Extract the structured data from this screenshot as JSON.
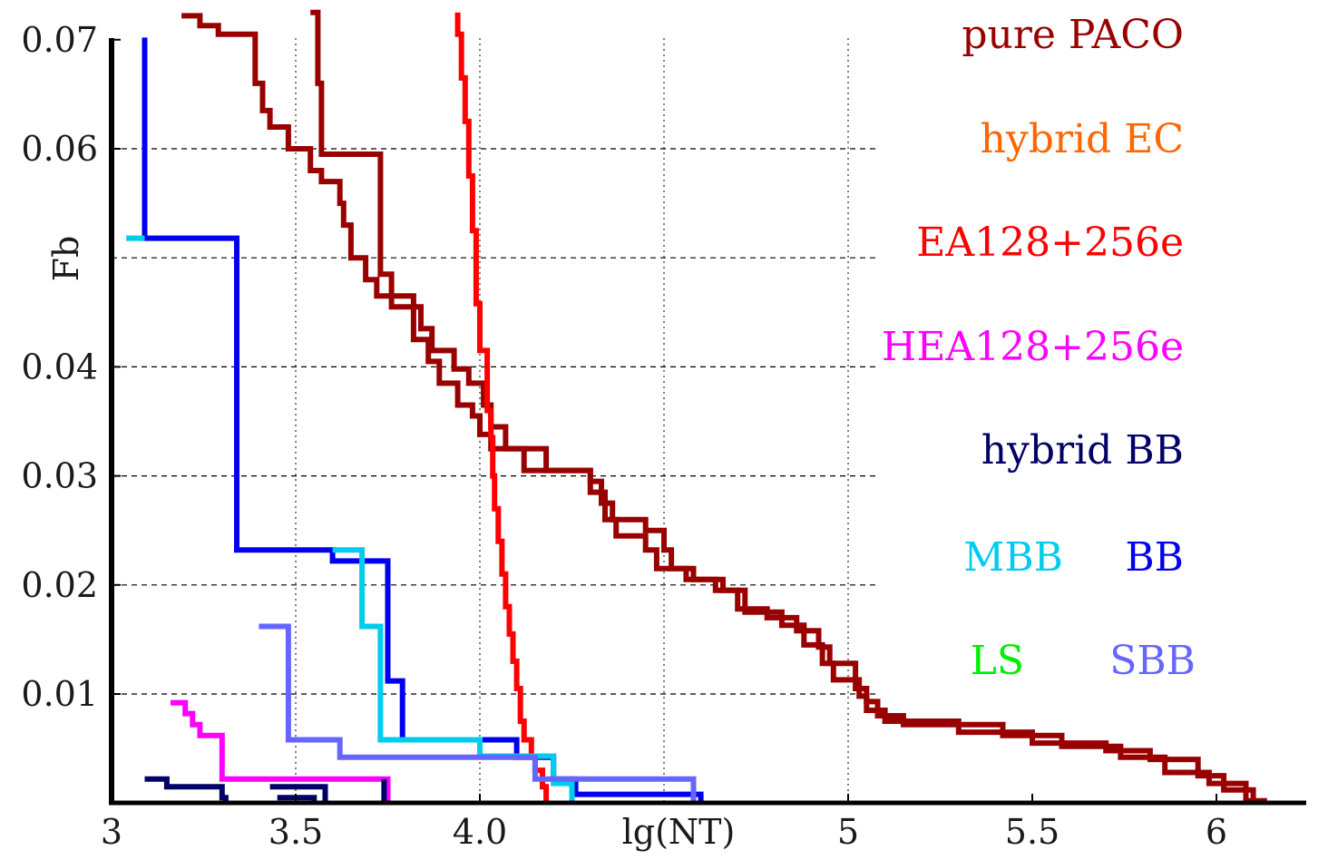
{
  "chart_data": {
    "type": "line",
    "xlabel": "lg(NT)",
    "ylabel": "Fb",
    "xlim": [
      3.0,
      6.25
    ],
    "ylim": [
      0.0,
      0.0702
    ],
    "x_ticks": [
      {
        "value": 3.0,
        "label": "3"
      },
      {
        "value": 3.5,
        "label": "3.5"
      },
      {
        "value": 4.0,
        "label": "4.0"
      },
      {
        "value": 5.0,
        "label": "5"
      },
      {
        "value": 5.5,
        "label": "5.5"
      },
      {
        "value": 6.0,
        "label": "6"
      }
    ],
    "y_ticks": [
      {
        "value": 0.01,
        "label": "0.01"
      },
      {
        "value": 0.02,
        "label": "0.02"
      },
      {
        "value": 0.03,
        "label": "0.03"
      },
      {
        "value": 0.04,
        "label": "0.04"
      },
      {
        "value": 0.06,
        "label": "0.06"
      },
      {
        "value": 0.07,
        "label": "0.07"
      }
    ],
    "grid": {
      "horizontal": [
        0.01,
        0.02,
        0.03,
        0.04,
        0.05,
        0.06
      ],
      "vertical": [
        3.5,
        4.0,
        4.5,
        5.0
      ]
    },
    "legend": [
      {
        "label": "pure PACO",
        "color": "#990000"
      },
      {
        "label": "hybrid EC",
        "color": "#ff6600"
      },
      {
        "label": "EA128+256e",
        "color": "#ff0000"
      },
      {
        "label": "HEA128+256e",
        "color": "#ff00ff"
      },
      {
        "label": "hybrid BB",
        "color": "#000066"
      },
      {
        "label": "MBB",
        "color": "#00ccee"
      },
      {
        "label": "BB",
        "color": "#0000ee"
      },
      {
        "label": "LS",
        "color": "#00ee00"
      },
      {
        "label": "SBB",
        "color": "#6666ff"
      }
    ],
    "series": [
      {
        "color": "#990000",
        "points": [
          [
            3.19,
            0.0722
          ],
          [
            3.24,
            0.0722
          ],
          [
            3.24,
            0.0713
          ],
          [
            3.29,
            0.0713
          ],
          [
            3.29,
            0.0705
          ],
          [
            3.39,
            0.0705
          ],
          [
            3.39,
            0.066
          ],
          [
            3.41,
            0.066
          ],
          [
            3.41,
            0.0635
          ],
          [
            3.43,
            0.0635
          ],
          [
            3.43,
            0.062
          ],
          [
            3.48,
            0.062
          ],
          [
            3.48,
            0.06
          ],
          [
            3.54,
            0.06
          ],
          [
            3.54,
            0.058
          ],
          [
            3.57,
            0.058
          ],
          [
            3.57,
            0.057
          ],
          [
            3.62,
            0.057
          ],
          [
            3.62,
            0.055
          ],
          [
            3.63,
            0.055
          ],
          [
            3.63,
            0.053
          ],
          [
            3.65,
            0.053
          ],
          [
            3.65,
            0.05
          ],
          [
            3.69,
            0.05
          ],
          [
            3.69,
            0.048
          ],
          [
            3.72,
            0.048
          ],
          [
            3.72,
            0.0465
          ],
          [
            3.76,
            0.0465
          ],
          [
            3.76,
            0.0455
          ],
          [
            3.84,
            0.0455
          ],
          [
            3.84,
            0.0435
          ],
          [
            3.87,
            0.0435
          ],
          [
            3.87,
            0.0415
          ],
          [
            3.93,
            0.0415
          ],
          [
            3.93,
            0.0398
          ],
          [
            3.97,
            0.0398
          ],
          [
            3.97,
            0.0385
          ],
          [
            4.01,
            0.0385
          ],
          [
            4.01,
            0.0365
          ],
          [
            4.03,
            0.0365
          ],
          [
            4.03,
            0.0345
          ],
          [
            4.07,
            0.0345
          ],
          [
            4.07,
            0.0325
          ],
          [
            4.12,
            0.0325
          ],
          [
            4.12,
            0.0305
          ],
          [
            4.3,
            0.0305
          ],
          [
            4.3,
            0.0295
          ],
          [
            4.33,
            0.0295
          ],
          [
            4.33,
            0.0275
          ],
          [
            4.36,
            0.0275
          ],
          [
            4.36,
            0.026
          ],
          [
            4.45,
            0.026
          ],
          [
            4.45,
            0.025
          ],
          [
            4.5,
            0.025
          ],
          [
            4.5,
            0.0232
          ],
          [
            4.52,
            0.0232
          ],
          [
            4.52,
            0.0215
          ],
          [
            4.58,
            0.0215
          ],
          [
            4.58,
            0.0205
          ],
          [
            4.66,
            0.0205
          ],
          [
            4.66,
            0.0195
          ],
          [
            4.7,
            0.0195
          ],
          [
            4.7,
            0.0178
          ],
          [
            4.78,
            0.0178
          ],
          [
            4.78,
            0.017
          ],
          [
            4.86,
            0.017
          ],
          [
            4.86,
            0.0158
          ],
          [
            4.92,
            0.0158
          ],
          [
            4.92,
            0.0143
          ],
          [
            4.95,
            0.0143
          ],
          [
            4.95,
            0.0128
          ],
          [
            5.02,
            0.0128
          ],
          [
            5.02,
            0.0105
          ],
          [
            5.05,
            0.0105
          ],
          [
            5.05,
            0.0093
          ],
          [
            5.08,
            0.0093
          ],
          [
            5.08,
            0.008
          ],
          [
            5.15,
            0.008
          ],
          [
            5.15,
            0.0072
          ],
          [
            5.42,
            0.0072
          ],
          [
            5.42,
            0.0062
          ],
          [
            5.58,
            0.0062
          ],
          [
            5.58,
            0.0052
          ],
          [
            5.74,
            0.0052
          ],
          [
            5.74,
            0.0042
          ],
          [
            5.86,
            0.0042
          ],
          [
            5.86,
            0.0028
          ],
          [
            5.98,
            0.0028
          ],
          [
            5.98,
            0.0018
          ],
          [
            6.08,
            0.0018
          ],
          [
            6.08,
            0.0002
          ],
          [
            6.13,
            0.0002
          ],
          [
            6.13,
            -0.0005
          ]
        ]
      },
      {
        "color": "#990000",
        "points": [
          [
            3.54,
            0.0725
          ],
          [
            3.56,
            0.0725
          ],
          [
            3.56,
            0.066
          ],
          [
            3.57,
            0.066
          ],
          [
            3.57,
            0.0595
          ],
          [
            3.73,
            0.0595
          ],
          [
            3.73,
            0.0485
          ],
          [
            3.76,
            0.0485
          ],
          [
            3.76,
            0.0465
          ],
          [
            3.82,
            0.0465
          ],
          [
            3.82,
            0.0425
          ],
          [
            3.86,
            0.0425
          ],
          [
            3.86,
            0.0405
          ],
          [
            3.89,
            0.0405
          ],
          [
            3.89,
            0.0385
          ],
          [
            3.94,
            0.0385
          ],
          [
            3.94,
            0.0365
          ],
          [
            3.98,
            0.0365
          ],
          [
            3.98,
            0.0355
          ],
          [
            4.0,
            0.0355
          ],
          [
            4.0,
            0.0338
          ],
          [
            4.03,
            0.0338
          ],
          [
            4.03,
            0.0325
          ],
          [
            4.18,
            0.0325
          ],
          [
            4.18,
            0.0305
          ],
          [
            4.3,
            0.0305
          ],
          [
            4.3,
            0.0285
          ],
          [
            4.34,
            0.0285
          ],
          [
            4.34,
            0.026
          ],
          [
            4.37,
            0.026
          ],
          [
            4.37,
            0.0245
          ],
          [
            4.45,
            0.0245
          ],
          [
            4.45,
            0.0232
          ],
          [
            4.48,
            0.0232
          ],
          [
            4.48,
            0.0215
          ],
          [
            4.56,
            0.0215
          ],
          [
            4.56,
            0.0205
          ],
          [
            4.64,
            0.0205
          ],
          [
            4.64,
            0.0195
          ],
          [
            4.72,
            0.0195
          ],
          [
            4.72,
            0.0175
          ],
          [
            4.82,
            0.0175
          ],
          [
            4.82,
            0.0163
          ],
          [
            4.88,
            0.0163
          ],
          [
            4.88,
            0.0145
          ],
          [
            4.93,
            0.0145
          ],
          [
            4.93,
            0.0128
          ],
          [
            4.96,
            0.0128
          ],
          [
            4.96,
            0.0113
          ],
          [
            5.03,
            0.0113
          ],
          [
            5.03,
            0.0098
          ],
          [
            5.05,
            0.0098
          ],
          [
            5.05,
            0.0085
          ],
          [
            5.1,
            0.0085
          ],
          [
            5.1,
            0.0075
          ],
          [
            5.3,
            0.0075
          ],
          [
            5.3,
            0.0065
          ],
          [
            5.5,
            0.0065
          ],
          [
            5.5,
            0.0055
          ],
          [
            5.7,
            0.0055
          ],
          [
            5.7,
            0.0048
          ],
          [
            5.82,
            0.0048
          ],
          [
            5.82,
            0.004
          ],
          [
            5.95,
            0.004
          ],
          [
            5.95,
            0.0025
          ],
          [
            6.02,
            0.0025
          ],
          [
            6.02,
            0.0012
          ],
          [
            6.1,
            0.0012
          ],
          [
            6.1,
            -0.0005
          ]
        ]
      },
      {
        "color": "#ff0000",
        "points": [
          [
            3.94,
            0.0725
          ],
          [
            3.94,
            0.0705
          ],
          [
            3.95,
            0.0705
          ],
          [
            3.95,
            0.0665
          ],
          [
            3.96,
            0.0665
          ],
          [
            3.96,
            0.0625
          ],
          [
            3.97,
            0.0625
          ],
          [
            3.97,
            0.0575
          ],
          [
            3.98,
            0.0575
          ],
          [
            3.98,
            0.0525
          ],
          [
            3.99,
            0.0525
          ],
          [
            3.99,
            0.0458
          ],
          [
            4.0,
            0.0458
          ],
          [
            4.0,
            0.0415
          ],
          [
            4.02,
            0.0415
          ],
          [
            4.02,
            0.036
          ],
          [
            4.03,
            0.036
          ],
          [
            4.03,
            0.0335
          ],
          [
            4.035,
            0.0335
          ],
          [
            4.035,
            0.03
          ],
          [
            4.04,
            0.03
          ],
          [
            4.04,
            0.027
          ],
          [
            4.05,
            0.027
          ],
          [
            4.05,
            0.024
          ],
          [
            4.06,
            0.024
          ],
          [
            4.06,
            0.021
          ],
          [
            4.07,
            0.021
          ],
          [
            4.07,
            0.018
          ],
          [
            4.08,
            0.018
          ],
          [
            4.08,
            0.0155
          ],
          [
            4.09,
            0.0155
          ],
          [
            4.09,
            0.013
          ],
          [
            4.1,
            0.013
          ],
          [
            4.1,
            0.0105
          ],
          [
            4.11,
            0.0105
          ],
          [
            4.11,
            0.0075
          ],
          [
            4.12,
            0.0075
          ],
          [
            4.12,
            0.0058
          ],
          [
            4.14,
            0.0058
          ],
          [
            4.14,
            0.0043
          ],
          [
            4.15,
            0.0043
          ],
          [
            4.15,
            0.003
          ],
          [
            4.17,
            0.003
          ],
          [
            4.17,
            0.0015
          ],
          [
            4.18,
            0.0015
          ],
          [
            4.18,
            -0.0005
          ]
        ]
      },
      {
        "color": "#ff00ff",
        "points": [
          [
            3.16,
            0.0092
          ],
          [
            3.2,
            0.0092
          ],
          [
            3.2,
            0.0082
          ],
          [
            3.22,
            0.0082
          ],
          [
            3.22,
            0.0072
          ],
          [
            3.24,
            0.0072
          ],
          [
            3.24,
            0.0062
          ],
          [
            3.3,
            0.0062
          ],
          [
            3.3,
            0.0022
          ],
          [
            3.75,
            0.0022
          ],
          [
            3.75,
            -0.0005
          ]
        ]
      },
      {
        "color": "#0000ee",
        "points": [
          [
            3.09,
            0.0702
          ],
          [
            3.09,
            0.0518
          ],
          [
            3.34,
            0.0518
          ],
          [
            3.34,
            0.0232
          ],
          [
            3.6,
            0.0232
          ],
          [
            3.6,
            0.0222
          ],
          [
            3.75,
            0.0222
          ],
          [
            3.75,
            0.0112
          ],
          [
            3.79,
            0.0112
          ],
          [
            3.79,
            0.0058
          ],
          [
            4.1,
            0.0058
          ],
          [
            4.1,
            0.0042
          ],
          [
            4.2,
            0.0042
          ],
          [
            4.2,
            0.0022
          ],
          [
            4.26,
            0.0022
          ],
          [
            4.26,
            0.0008
          ],
          [
            4.6,
            0.0008
          ],
          [
            4.6,
            -0.0005
          ]
        ]
      },
      {
        "color": "#00ccee",
        "points": [
          [
            3.04,
            0.0518
          ],
          [
            3.09,
            0.0518
          ]
        ]
      },
      {
        "color": "#00ccee",
        "points": [
          [
            3.6,
            0.0232
          ],
          [
            3.68,
            0.0232
          ],
          [
            3.68,
            0.0162
          ],
          [
            3.73,
            0.0162
          ],
          [
            3.73,
            0.0058
          ],
          [
            4.0,
            0.0058
          ],
          [
            4.0,
            0.0043
          ],
          [
            4.2,
            0.0043
          ],
          [
            4.2,
            0.0018
          ],
          [
            4.25,
            0.0018
          ],
          [
            4.25,
            -0.0005
          ]
        ]
      },
      {
        "color": "#6666ff",
        "points": [
          [
            3.4,
            0.0162
          ],
          [
            3.48,
            0.0162
          ],
          [
            3.48,
            0.0058
          ],
          [
            3.62,
            0.0058
          ],
          [
            3.62,
            0.0042
          ],
          [
            4.15,
            0.0042
          ],
          [
            4.15,
            0.0022
          ],
          [
            4.58,
            0.0022
          ],
          [
            4.58,
            -0.0005
          ]
        ]
      },
      {
        "color": "#000066",
        "points": [
          [
            3.09,
            0.0022
          ],
          [
            3.15,
            0.0022
          ],
          [
            3.15,
            0.0015
          ],
          [
            3.3,
            0.0015
          ],
          [
            3.3,
            0.0005
          ],
          [
            3.31,
            0.0005
          ],
          [
            3.31,
            -0.0005
          ]
        ]
      },
      {
        "color": "#000066",
        "points": [
          [
            3.43,
            0.0015
          ],
          [
            3.58,
            0.0015
          ],
          [
            3.58,
            -0.0005
          ]
        ]
      },
      {
        "color": "#000066",
        "points": [
          [
            3.45,
            0.0005
          ],
          [
            3.55,
            0.0005
          ],
          [
            3.55,
            -0.0005
          ]
        ]
      },
      {
        "color": "#000066",
        "points": [
          [
            3.74,
            0.0022
          ],
          [
            3.74,
            -0.0005
          ]
        ]
      }
    ]
  }
}
